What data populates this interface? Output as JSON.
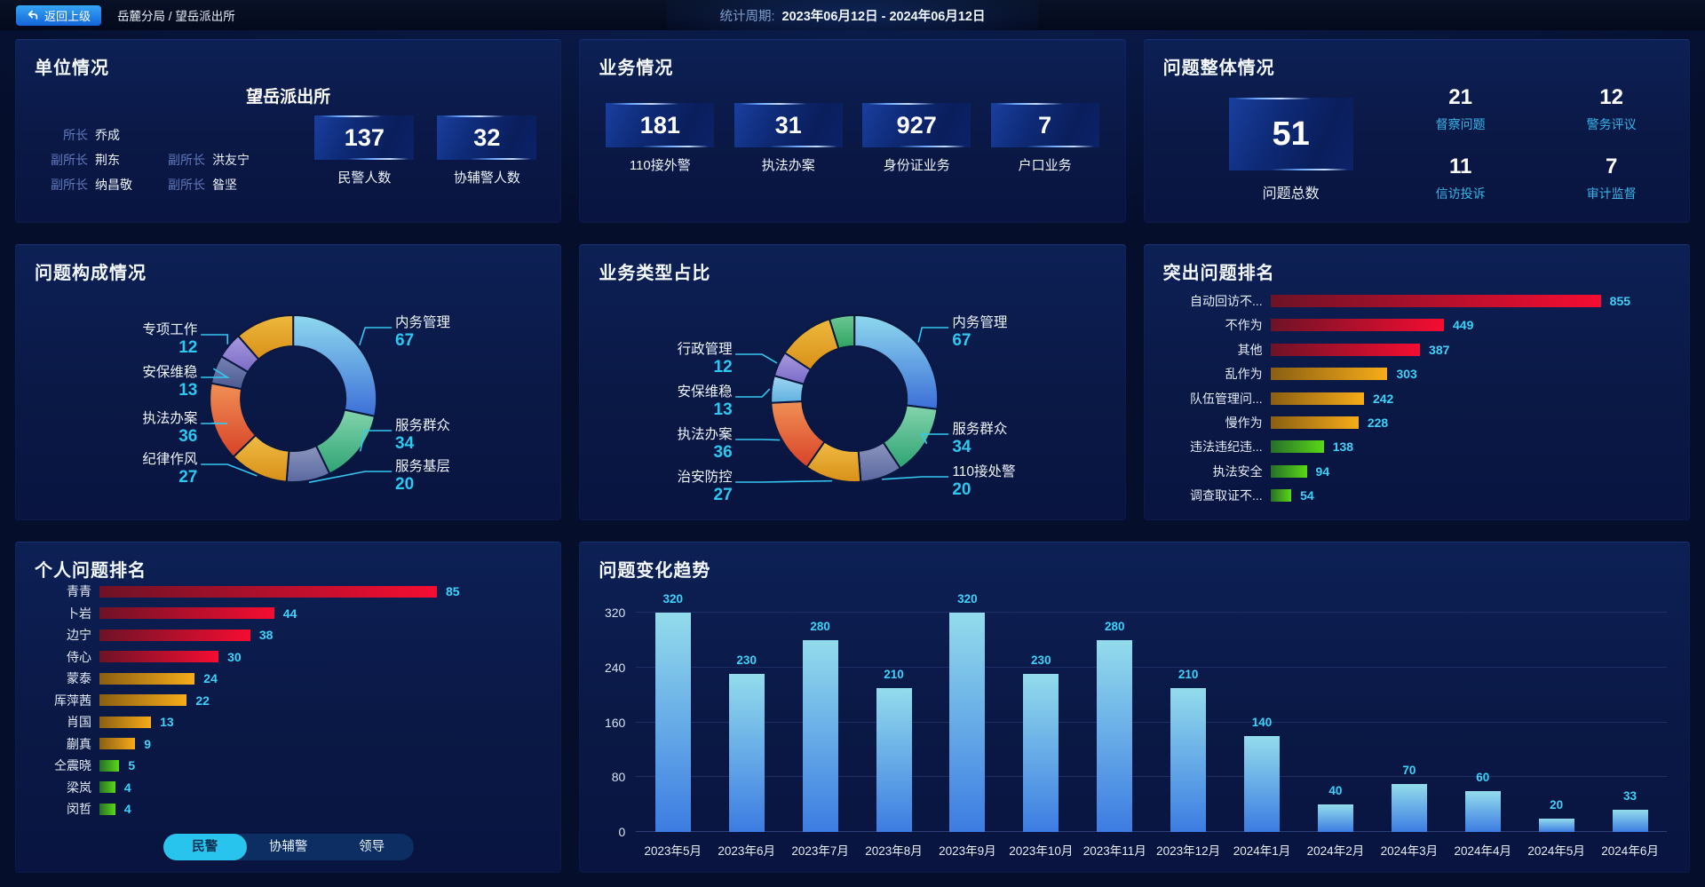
{
  "top_bar": {
    "back_button": "返回上级",
    "breadcrumb": "岳麓分局 / 望岳派出所",
    "period_label": "统计周期:",
    "period_value": "2023年06月12日 - 2024年06月12日"
  },
  "palette": {
    "accent_cyan": "#2cc8f0",
    "value_cyan": "#3fd2f8",
    "panel_bg": "#0a1845",
    "tab_active": "#29c4ee",
    "button_blue": "#1464d8",
    "bar_red": [
      "#6e1226",
      "#f50d32"
    ],
    "bar_gold": [
      "#8a5f12",
      "#f7ac19"
    ],
    "bar_green": [
      "#266f28",
      "#5ad815"
    ],
    "trend_bar": [
      "#93dcec",
      "#3c7ce2"
    ]
  },
  "panels": {
    "unit": {
      "title": "单位情况",
      "station_name": "望岳派出所",
      "roster": [
        {
          "role": "所长",
          "name": "乔成"
        },
        {
          "role": "副所长",
          "name": "荆东"
        },
        {
          "role": "副所长",
          "name": "洪友宁"
        },
        {
          "role": "副所长",
          "name": "纳昌敬"
        },
        {
          "role": "副所长",
          "name": "昝坚"
        }
      ],
      "stats": [
        {
          "value": "137",
          "label": "民警人数"
        },
        {
          "value": "32",
          "label": "协辅警人数"
        }
      ]
    },
    "business": {
      "title": "业务情况",
      "stats": [
        {
          "value": "181",
          "label": "110接外警"
        },
        {
          "value": "31",
          "label": "执法办案"
        },
        {
          "value": "927",
          "label": "身份证业务"
        },
        {
          "value": "7",
          "label": "户口业务"
        }
      ]
    },
    "problem_overview": {
      "title": "问题整体情况",
      "total": {
        "value": "51",
        "label": "问题总数"
      },
      "stats": [
        {
          "value": "21",
          "label": "督察问题"
        },
        {
          "value": "12",
          "label": "警务评议"
        },
        {
          "value": "11",
          "label": "信访投诉"
        },
        {
          "value": "7",
          "label": "审计监督"
        }
      ]
    },
    "problem_composition": {
      "title": "问题构成情况"
    },
    "business_types": {
      "title": "业务类型占比"
    },
    "top_problems": {
      "title": "突出问题排名"
    },
    "personal_ranking": {
      "title": "个人问题排名",
      "tabs": [
        {
          "label": "民警",
          "active": true
        },
        {
          "label": "协辅警",
          "active": false
        },
        {
          "label": "领导",
          "active": false
        }
      ]
    },
    "trend": {
      "title": "问题变化趋势"
    }
  },
  "chart_data": [
    {
      "id": "problem_composition",
      "type": "pie",
      "title": "问题构成情况",
      "legend_position": "callout-labels",
      "segments": [
        {
          "label": "内务管理",
          "value": 67,
          "color": [
            "#8ed9ee",
            "#3c6fd8"
          ]
        },
        {
          "label": "服务群众",
          "value": 34,
          "color": [
            "#83d4ac",
            "#2ea374"
          ]
        },
        {
          "label": "服务基层",
          "value": 20,
          "color": [
            "#8b95bd",
            "#5a68a0"
          ]
        },
        {
          "label": "纪律作风",
          "value": 27,
          "color": [
            "#f0bc45",
            "#d89018"
          ]
        },
        {
          "label": "执法办案",
          "value": 36,
          "color": [
            "#f09055",
            "#d84228"
          ]
        },
        {
          "label": "安保维稳",
          "value": 13,
          "color": [
            "#7582b5",
            "#4d5b92"
          ]
        },
        {
          "label": "专项工作",
          "value": 12,
          "color": [
            "#a79ade",
            "#7b6ac6"
          ]
        },
        {
          "label": "",
          "value": 27,
          "color": [
            "#eeb93e",
            "#d89018"
          ]
        }
      ]
    },
    {
      "id": "business_types",
      "type": "pie",
      "title": "业务类型占比",
      "legend_position": "callout-labels",
      "segments": [
        {
          "label": "内务管理",
          "value": 67,
          "color": [
            "#8ed9ee",
            "#3c6fd8"
          ]
        },
        {
          "label": "服务群众",
          "value": 34,
          "color": [
            "#83d4ac",
            "#2ea374"
          ]
        },
        {
          "label": "110接处警",
          "value": 20,
          "color": [
            "#8b95bd",
            "#5a68a0"
          ]
        },
        {
          "label": "治安防控",
          "value": 27,
          "color": [
            "#f0bc45",
            "#d89018"
          ]
        },
        {
          "label": "执法办案",
          "value": 36,
          "color": [
            "#f09055",
            "#d84228"
          ]
        },
        {
          "label": "安保维稳",
          "value": 13,
          "color": [
            "#9ed7f0",
            "#5fb0e0"
          ]
        },
        {
          "label": "行政管理",
          "value": 12,
          "color": [
            "#a79ade",
            "#7b6ac6"
          ]
        },
        {
          "label": "",
          "value": 27,
          "color": [
            "#eeb93e",
            "#d89018"
          ]
        },
        {
          "label": "",
          "value": 12,
          "color": [
            "#6cc894",
            "#2ea35f"
          ]
        }
      ]
    },
    {
      "id": "top_problems",
      "type": "bar",
      "orientation": "horizontal",
      "title": "突出问题排名",
      "xmax": 855,
      "items": [
        {
          "label": "自动回访不...",
          "value": 855,
          "color": "red"
        },
        {
          "label": "不作为",
          "value": 449,
          "color": "red"
        },
        {
          "label": "其他",
          "value": 387,
          "color": "red"
        },
        {
          "label": "乱作为",
          "value": 303,
          "color": "gold"
        },
        {
          "label": "队伍管理问...",
          "value": 242,
          "color": "gold"
        },
        {
          "label": "慢作为",
          "value": 228,
          "color": "gold"
        },
        {
          "label": "违法违纪违...",
          "value": 138,
          "color": "green"
        },
        {
          "label": "执法安全",
          "value": 94,
          "color": "green"
        },
        {
          "label": "调查取证不...",
          "value": 54,
          "color": "green"
        }
      ]
    },
    {
      "id": "personal_ranking",
      "type": "bar",
      "orientation": "horizontal",
      "title": "个人问题排名",
      "xmax": 85,
      "items": [
        {
          "label": "青青",
          "value": 85,
          "color": "red"
        },
        {
          "label": "卜岩",
          "value": 44,
          "color": "red"
        },
        {
          "label": "边宁",
          "value": 38,
          "color": "red"
        },
        {
          "label": "侍心",
          "value": 30,
          "color": "red"
        },
        {
          "label": "蒙泰",
          "value": 24,
          "color": "gold"
        },
        {
          "label": "厍萍茜",
          "value": 22,
          "color": "gold"
        },
        {
          "label": "肖国",
          "value": 13,
          "color": "gold"
        },
        {
          "label": "蒯真",
          "value": 9,
          "color": "gold"
        },
        {
          "label": "仝震晓",
          "value": 5,
          "color": "green"
        },
        {
          "label": "梁岚",
          "value": 4,
          "color": "green"
        },
        {
          "label": "闵哲",
          "value": 4,
          "color": "green"
        }
      ]
    },
    {
      "id": "trend",
      "type": "bar",
      "orientation": "vertical",
      "title": "问题变化趋势",
      "categories": [
        "2023年5月",
        "2023年6月",
        "2023年7月",
        "2023年8月",
        "2023年9月",
        "2023年10月",
        "2023年11月",
        "2023年12月",
        "2024年1月",
        "2024年2月",
        "2024年3月",
        "2024年4月",
        "2024年5月",
        "2024年6月"
      ],
      "values": [
        320,
        230,
        280,
        210,
        320,
        230,
        280,
        210,
        140,
        40,
        70,
        60,
        20,
        33
      ],
      "ylim": [
        0,
        320
      ],
      "yticks": [
        0,
        80,
        160,
        240,
        320
      ],
      "grid": true
    }
  ]
}
